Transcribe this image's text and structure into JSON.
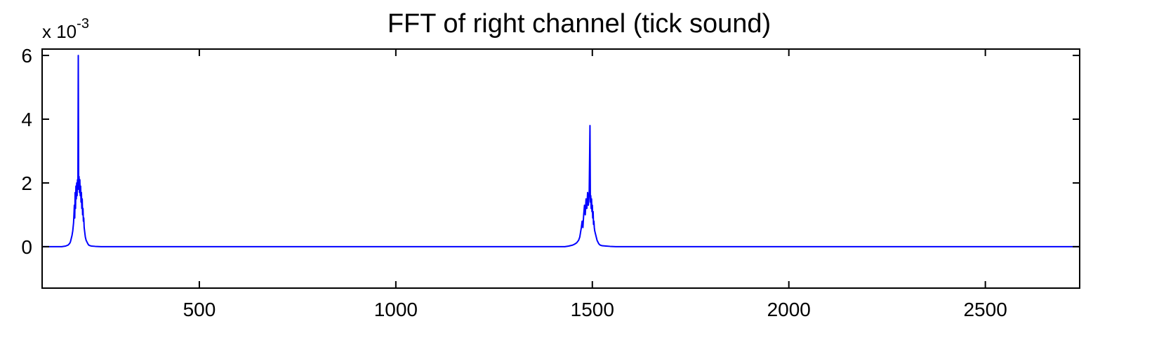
{
  "chart_data": {
    "type": "line",
    "title": "FFT of right channel (tick sound)",
    "xlabel": "",
    "ylabel": "",
    "y_multiplier_base": "x 10",
    "y_multiplier_exponent": "-3",
    "xlim": [
      100,
      2740
    ],
    "ylim": [
      -1.3,
      6.2
    ],
    "xticks": [
      500,
      1000,
      1500,
      2000,
      2500
    ],
    "yticks": [
      0,
      2,
      4,
      6
    ],
    "grid": false,
    "line_color": "#0000ff",
    "series": [
      {
        "x": [
          100,
          150,
          160,
          166,
          170,
          172,
          174,
          176,
          178,
          180,
          181,
          182,
          183,
          184,
          185,
          186,
          187,
          188,
          189,
          190,
          191,
          192,
          193,
          194,
          195,
          196,
          197,
          198,
          199,
          200,
          201,
          202,
          203,
          204,
          205,
          206,
          207,
          208,
          209,
          210,
          212,
          214,
          216,
          218,
          220,
          225,
          235,
          250,
          260,
          1430,
          1440,
          1450,
          1455,
          1460,
          1465,
          1468,
          1470,
          1472,
          1474,
          1476,
          1478,
          1480,
          1482,
          1484,
          1486,
          1488,
          1490,
          1492,
          1494,
          1495,
          1496,
          1497,
          1498,
          1499,
          1500,
          1501,
          1502,
          1503,
          1504,
          1505,
          1506,
          1508,
          1510,
          1512,
          1514,
          1516,
          1518,
          1520,
          1525,
          1535,
          1545,
          1560,
          2740
        ],
        "y": [
          0,
          0,
          0.02,
          0.05,
          0.1,
          0.15,
          0.25,
          0.35,
          0.5,
          0.75,
          1.0,
          1.3,
          0.9,
          1.7,
          1.2,
          1.9,
          1.5,
          2.0,
          1.6,
          2.1,
          1.8,
          6.0,
          1.8,
          2.2,
          1.7,
          2.1,
          1.6,
          1.9,
          1.4,
          1.7,
          1.2,
          1.5,
          1.0,
          1.2,
          0.8,
          0.9,
          0.6,
          0.5,
          0.4,
          0.3,
          0.2,
          0.15,
          0.1,
          0.06,
          0.04,
          0.02,
          0.01,
          0,
          0,
          0,
          0.02,
          0.05,
          0.08,
          0.12,
          0.2,
          0.3,
          0.45,
          0.6,
          0.8,
          0.6,
          1.0,
          1.3,
          1.0,
          1.5,
          1.2,
          1.7,
          1.3,
          1.7,
          3.8,
          1.4,
          1.6,
          1.2,
          1.5,
          1.1,
          1.3,
          0.9,
          1.1,
          0.7,
          0.8,
          0.6,
          0.5,
          0.4,
          0.3,
          0.2,
          0.15,
          0.1,
          0.07,
          0.05,
          0.03,
          0.02,
          0.01,
          0,
          0
        ]
      }
    ]
  }
}
